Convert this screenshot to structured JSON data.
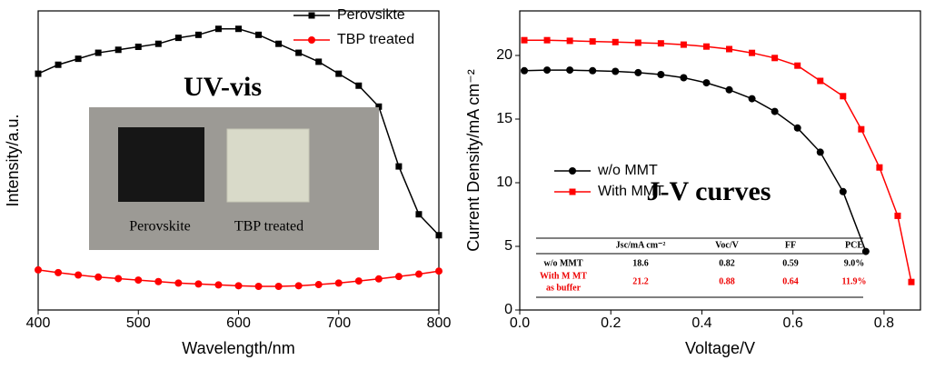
{
  "chart_data": [
    {
      "type": "line",
      "xlabel": "Wavelength/nm",
      "ylabel": "Intensity/a.u.",
      "annotation": "UV-vis",
      "inset_labels": [
        "Perovskite",
        "TBP treated"
      ],
      "xlim": [
        400,
        800
      ],
      "xticks": [
        400,
        500,
        600,
        700,
        800
      ],
      "ylim": [
        0,
        1
      ],
      "legend": "upper right",
      "x": [
        400,
        420,
        440,
        460,
        480,
        500,
        520,
        540,
        560,
        580,
        600,
        620,
        640,
        660,
        680,
        700,
        720,
        740,
        760,
        780,
        800
      ],
      "series": [
        {
          "name": "Perovsikte",
          "color": "#000000",
          "marker": "square",
          "values": [
            0.79,
            0.82,
            0.84,
            0.86,
            0.87,
            0.88,
            0.89,
            0.91,
            0.92,
            0.94,
            0.94,
            0.92,
            0.89,
            0.86,
            0.83,
            0.79,
            0.75,
            0.68,
            0.48,
            0.32,
            0.25
          ]
        },
        {
          "name": "TBP treated",
          "color": "#ff0000",
          "marker": "circle",
          "values": [
            0.134,
            0.125,
            0.117,
            0.11,
            0.105,
            0.1,
            0.095,
            0.09,
            0.087,
            0.084,
            0.081,
            0.079,
            0.079,
            0.081,
            0.085,
            0.09,
            0.097,
            0.104,
            0.112,
            0.12,
            0.13
          ]
        }
      ]
    },
    {
      "type": "line",
      "xlabel": "Voltage/V",
      "ylabel": "Current Density/mA cm⁻²",
      "annotation": "J-V curves",
      "xlim": [
        0,
        0.88
      ],
      "xticks": [
        {
          "value": 0,
          "label": "0.0"
        },
        0.2,
        0.4,
        0.6,
        0.8
      ],
      "ylim": [
        0,
        23.5
      ],
      "yticks": [
        0,
        5,
        10,
        15,
        20
      ],
      "legend": "center left",
      "series": [
        {
          "name": "w/o MMT",
          "color": "#000000",
          "marker": "circle",
          "x": [
            0.01,
            0.06,
            0.11,
            0.16,
            0.21,
            0.26,
            0.31,
            0.36,
            0.41,
            0.46,
            0.51,
            0.56,
            0.61,
            0.66,
            0.71,
            0.76
          ],
          "values": [
            18.8,
            18.85,
            18.85,
            18.8,
            18.75,
            18.65,
            18.5,
            18.25,
            17.85,
            17.3,
            16.6,
            15.6,
            14.3,
            12.4,
            9.3,
            4.6
          ]
        },
        {
          "name": "With MMT",
          "color": "#ff0000",
          "marker": "square",
          "x": [
            0.01,
            0.06,
            0.11,
            0.16,
            0.21,
            0.26,
            0.31,
            0.36,
            0.41,
            0.46,
            0.51,
            0.56,
            0.61,
            0.66,
            0.71,
            0.75,
            0.79,
            0.83,
            0.86
          ],
          "values": [
            21.2,
            21.2,
            21.15,
            21.1,
            21.05,
            21.0,
            20.95,
            20.85,
            20.7,
            20.5,
            20.2,
            19.8,
            19.2,
            18.0,
            16.8,
            14.2,
            11.2,
            7.4,
            2.2
          ]
        }
      ],
      "table": {
        "header": [
          "Jsc/mA cm⁻²",
          "Voc/V",
          "FF",
          "PCE"
        ],
        "rows": [
          [
            "w/o MMT",
            "18.6",
            "0.82",
            "0.59",
            "9.0%"
          ],
          [
            [
              "With M MT",
              "as buffer"
            ],
            "21.2",
            "0.88",
            "0.64",
            "11.9%"
          ]
        ]
      }
    }
  ]
}
